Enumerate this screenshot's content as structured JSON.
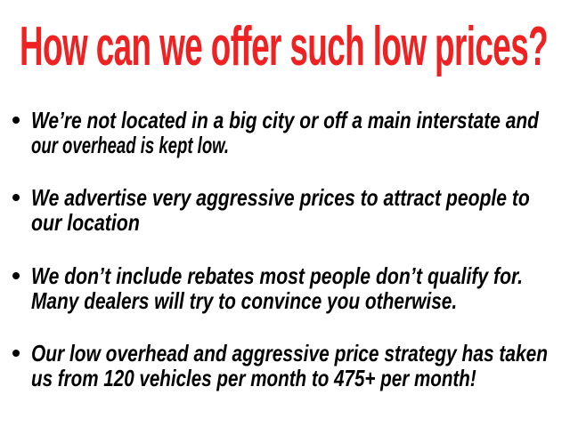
{
  "title": {
    "text": "How can we offer such low prices?",
    "color": "#ee2222"
  },
  "bullets": [
    {
      "lines": [
        "We’re not located in a big city or off a main interstate and",
        "our overhead is kept low."
      ]
    },
    {
      "lines": [
        "We advertise very aggressive prices to attract people to",
        "our location"
      ]
    },
    {
      "lines": [
        "We don’t include rebates most people don’t qualify for.",
        "Many dealers will try to convince you otherwise."
      ]
    },
    {
      "lines": [
        "Our low overhead and aggressive price strategy has taken",
        "us from 120 vehicles per month to 475+ per month!"
      ]
    }
  ]
}
